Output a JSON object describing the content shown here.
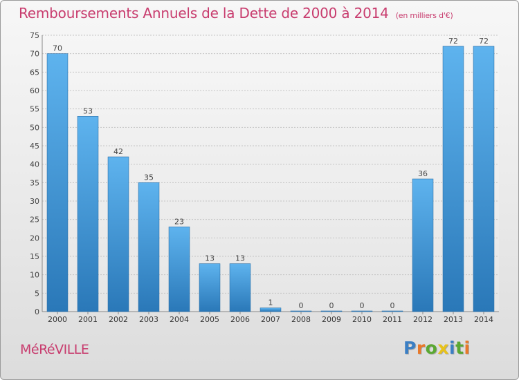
{
  "chart_data": {
    "type": "bar",
    "title": "Remboursements Annuels de la Dette de 2000 à 2014",
    "subtitle": "(en milliers d'€)",
    "categories": [
      "2000",
      "2001",
      "2002",
      "2003",
      "2004",
      "2005",
      "2006",
      "2007",
      "2008",
      "2009",
      "2010",
      "2011",
      "2012",
      "2013",
      "2014"
    ],
    "values": [
      70,
      53,
      42,
      35,
      23,
      13,
      13,
      1,
      0,
      0,
      0,
      0,
      36,
      72,
      72
    ],
    "ylim": [
      0,
      75
    ],
    "yticks": [
      0,
      5,
      10,
      15,
      20,
      25,
      30,
      35,
      40,
      45,
      50,
      55,
      60,
      65,
      70,
      75
    ],
    "xlabel": "",
    "ylabel": "",
    "grid": true,
    "bar_color": "#3a8fd0"
  },
  "commune": "MéRéVILLE",
  "logo": {
    "letters": [
      {
        "char": "P",
        "color": "#3b7fc4"
      },
      {
        "char": "r",
        "color": "#e8792a"
      },
      {
        "char": "o",
        "color": "#5aa832"
      },
      {
        "char": "x",
        "color": "#e8c21a"
      },
      {
        "char": "i",
        "color": "#3b7fc4"
      },
      {
        "char": "t",
        "color": "#5aa832"
      },
      {
        "char": "i",
        "color": "#e8792a"
      }
    ]
  }
}
